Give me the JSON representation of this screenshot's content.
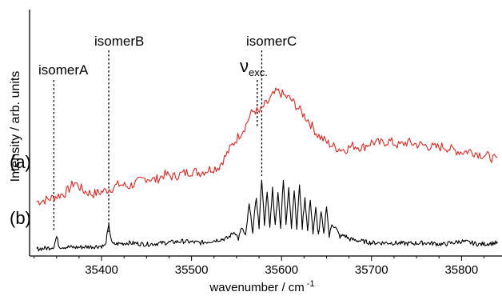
{
  "chart_data": {
    "type": "line",
    "xlabel": "wavenumber / cm",
    "xlabel_sup": "-1",
    "ylabel": "Intensity  / arb. units",
    "xlim": [
      35320,
      35845
    ],
    "x_ticks": [
      35400,
      35500,
      35600,
      35700,
      35800
    ],
    "x_tick_labels": [
      "35400",
      "35500",
      "35600",
      "35700",
      "35800"
    ],
    "grid": false,
    "colors": {
      "a": "#e8241f",
      "b": "#000000"
    },
    "series": [
      {
        "name": "(a)",
        "x": [
          35328,
          35340,
          35350,
          35360,
          35370,
          35380,
          35390,
          35400,
          35410,
          35420,
          35430,
          35440,
          35450,
          35460,
          35470,
          35480,
          35490,
          35500,
          35510,
          35520,
          35530,
          35540,
          35545,
          35550,
          35555,
          35560,
          35565,
          35570,
          35575,
          35580,
          35585,
          35590,
          35595,
          35600,
          35605,
          35610,
          35615,
          35620,
          35630,
          35640,
          35650,
          35660,
          35670,
          35680,
          35690,
          35700,
          35710,
          35720,
          35730,
          35740,
          35750,
          35760,
          35770,
          35780,
          35790,
          35800,
          35810,
          35820,
          35830,
          35840
        ],
        "y": [
          0.0,
          0.02,
          0.05,
          0.08,
          0.18,
          0.1,
          0.07,
          0.09,
          0.12,
          0.16,
          0.14,
          0.18,
          0.22,
          0.2,
          0.25,
          0.23,
          0.26,
          0.28,
          0.27,
          0.3,
          0.32,
          0.45,
          0.52,
          0.58,
          0.64,
          0.7,
          0.8,
          0.85,
          0.82,
          0.88,
          0.92,
          0.98,
          1.02,
          1.0,
          0.97,
          0.95,
          0.9,
          0.85,
          0.75,
          0.62,
          0.55,
          0.5,
          0.48,
          0.52,
          0.5,
          0.55,
          0.54,
          0.56,
          0.52,
          0.55,
          0.53,
          0.52,
          0.5,
          0.51,
          0.48,
          0.46,
          0.47,
          0.44,
          0.42,
          0.38
        ]
      },
      {
        "name": "(b)",
        "x": [
          35328,
          35340,
          35347,
          35350,
          35353,
          35370,
          35390,
          35404,
          35408,
          35412,
          35430,
          35450,
          35470,
          35490,
          35510,
          35530,
          35540,
          35548,
          35552,
          35556,
          35560,
          35564,
          35568,
          35572,
          35575,
          35578,
          35581,
          35584,
          35587,
          35590,
          35593,
          35596,
          35599,
          35602,
          35605,
          35608,
          35611,
          35614,
          35617,
          35620,
          35623,
          35626,
          35629,
          35632,
          35635,
          35638,
          35641,
          35644,
          35647,
          35650,
          35653,
          35656,
          35660,
          35665,
          35670,
          35675,
          35680,
          35690,
          35700,
          35720,
          35740,
          35760,
          35780,
          35800,
          35820,
          35840
        ],
        "y": [
          0.02,
          0.03,
          0.05,
          0.18,
          0.05,
          0.04,
          0.05,
          0.06,
          0.32,
          0.08,
          0.1,
          0.08,
          0.1,
          0.12,
          0.1,
          0.14,
          0.16,
          0.25,
          0.15,
          0.3,
          0.18,
          0.6,
          0.25,
          0.7,
          0.3,
          0.95,
          0.35,
          0.75,
          0.3,
          0.82,
          0.32,
          0.78,
          0.3,
          0.92,
          0.35,
          0.85,
          0.3,
          0.8,
          0.28,
          0.88,
          0.3,
          0.7,
          0.25,
          0.68,
          0.22,
          0.55,
          0.2,
          0.5,
          0.2,
          0.6,
          0.18,
          0.35,
          0.3,
          0.18,
          0.2,
          0.15,
          0.14,
          0.12,
          0.1,
          0.1,
          0.09,
          0.1,
          0.08,
          0.12,
          0.08,
          0.1
        ]
      }
    ],
    "labels": {
      "a": "(a)",
      "b": "(b)",
      "isomerA": "isomerA",
      "isomerB": "isomerB",
      "isomerC": "isomerC",
      "nu": "ν",
      "nu_sub": "exc."
    },
    "markers": {
      "isomerA": 35347,
      "isomerB": 35408,
      "nu_exc": 35573,
      "isomerC": 35578
    }
  }
}
